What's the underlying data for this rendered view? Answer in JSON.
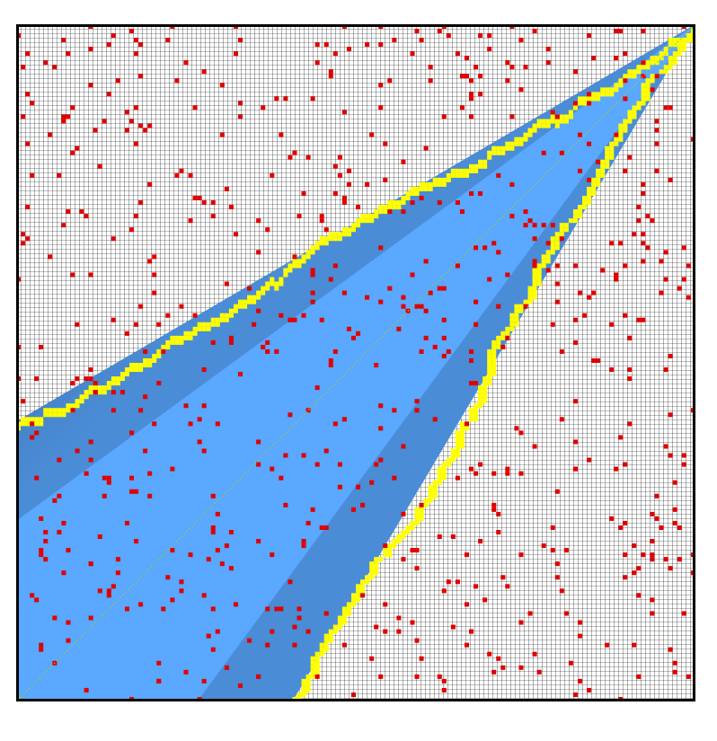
{
  "grid": {
    "cells": 150,
    "colors": {
      "empty": "#ffffff",
      "grid_line": "#000000",
      "obstacle": "#e00000",
      "frontier": "#ffff00",
      "explored_near": "#2d5a8a",
      "explored_far": "#5aa8ff",
      "path": "#9acd32",
      "border": "#000000"
    },
    "start": {
      "col": 0,
      "row": 149
    },
    "goal": {
      "col": 149,
      "row": 0
    },
    "obstacle_density_percent": 3
  }
}
